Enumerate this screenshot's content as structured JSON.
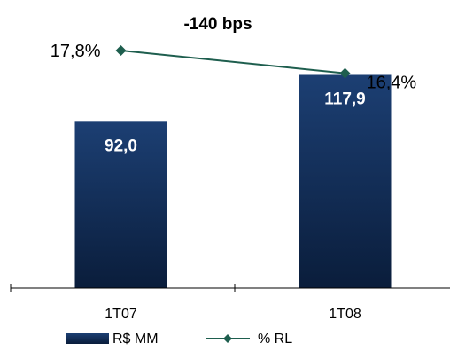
{
  "chart_data": {
    "type": "bar",
    "title": "-140 bps",
    "categories": [
      "1T07",
      "1T08"
    ],
    "series": [
      {
        "name": "R$ MM",
        "type": "bar",
        "values": [
          92.0,
          117.9
        ],
        "labels": [
          "92,0",
          "117,9"
        ],
        "color": "#0f2a52"
      },
      {
        "name": "% RL",
        "type": "line",
        "values": [
          17.8,
          16.4
        ],
        "labels": [
          "17,8%",
          "16,4%"
        ],
        "color": "#1e5e4e"
      }
    ],
    "bar_ylim": [
      0,
      125
    ],
    "line_ylim": [
      10,
      19
    ],
    "legend": "bottom",
    "grid": false
  }
}
